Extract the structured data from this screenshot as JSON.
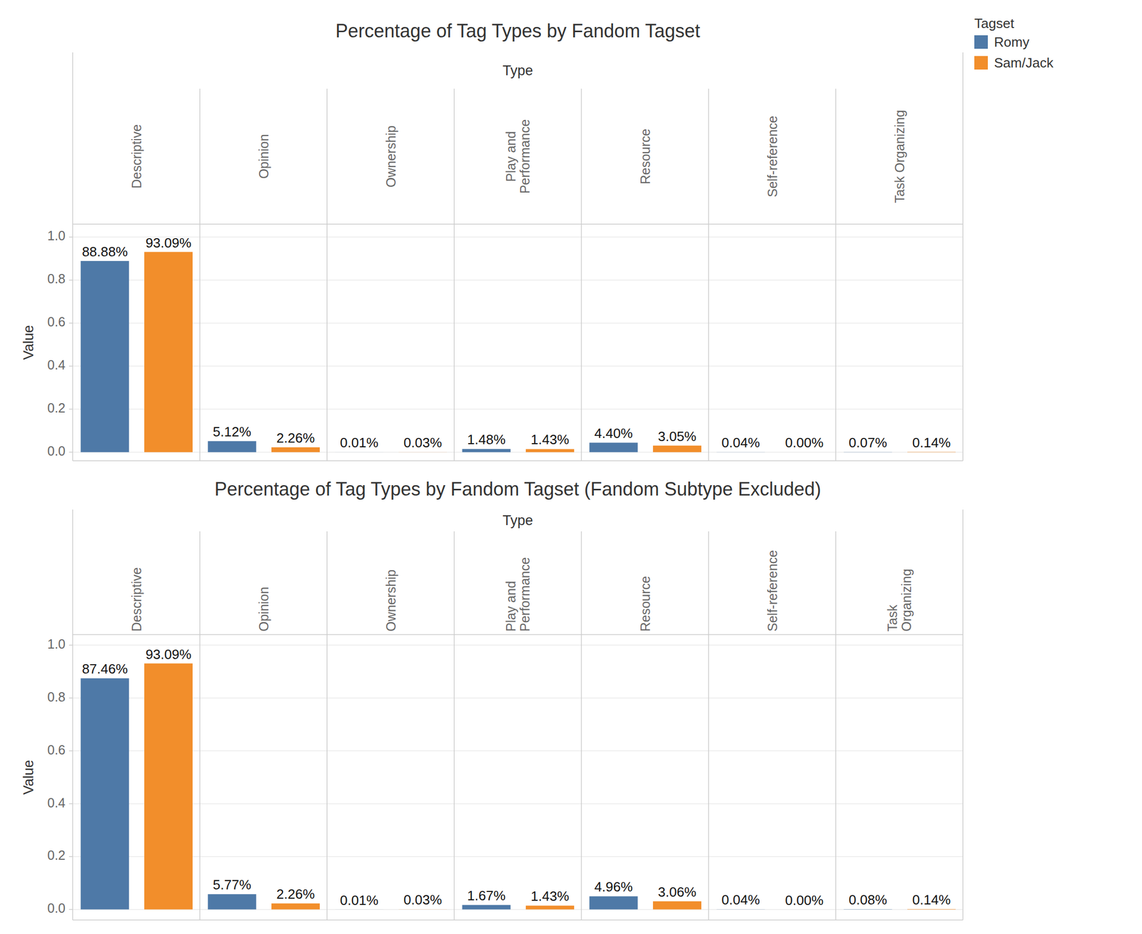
{
  "chart_data": [
    {
      "type": "bar",
      "title": "Percentage of Tag Types by Fandom Tagset",
      "x_label": "Type",
      "y_label": "Value",
      "categories": [
        "Descriptive",
        "Opinion",
        "Ownership",
        "Play and Performance",
        "Resource",
        "Self-reference",
        "Task Organizing"
      ],
      "series": [
        {
          "name": "Romy",
          "color": "#4e79a7",
          "values": [
            0.8888,
            0.0512,
            0.0001,
            0.0148,
            0.044,
            0.0004,
            0.0007
          ],
          "value_labels": [
            "88.88%",
            "5.12%",
            "0.01%",
            "1.48%",
            "4.40%",
            "0.04%",
            "0.07%"
          ]
        },
        {
          "name": "Sam/Jack",
          "color": "#f28e2b",
          "values": [
            0.9309,
            0.0226,
            0.0003,
            0.0143,
            0.0305,
            0,
            0.0014
          ],
          "value_labels": [
            "93.09%",
            "2.26%",
            "0.03%",
            "1.43%",
            "3.05%",
            "0.00%",
            "0.14%"
          ]
        }
      ],
      "ylim": [
        -0.04,
        1.06
      ],
      "yticks": [
        {
          "value": 0,
          "label": "0.0"
        },
        0.2,
        0.4,
        0.6,
        0.8,
        {
          "value": 1,
          "label": "1.0"
        }
      ],
      "grid": true,
      "data_labels": true,
      "legend": "top-right",
      "legend_title": "Tagset"
    },
    {
      "type": "bar",
      "title": "Percentage of Tag Types by Fandom Tagset (Fandom Subtype Excluded)",
      "x_label": "Type",
      "y_label": "Value",
      "categories": [
        "Descriptive",
        "Opinion",
        "Ownership",
        "Play and Performance",
        "Resource",
        "Self-reference",
        "Task Organizing"
      ],
      "series": [
        {
          "color": "#4e79a7",
          "values": [
            0.8746,
            0.0577,
            0.0001,
            0.0167,
            0.0496,
            0.0004,
            0.0008
          ],
          "value_labels": [
            "87.46%",
            "5.77%",
            "0.01%",
            "1.67%",
            "4.96%",
            "0.04%",
            "0.08%"
          ]
        },
        {
          "color": "#f28e2b",
          "values": [
            0.9309,
            0.0226,
            0.0003,
            0.0143,
            0.0306,
            0,
            0.0014
          ],
          "value_labels": [
            "93.09%",
            "2.26%",
            "0.03%",
            "1.43%",
            "3.06%",
            "0.00%",
            "0.14%"
          ]
        }
      ],
      "ylim": [
        -0.04,
        1.04
      ],
      "yticks": [
        {
          "value": 0,
          "label": "0.0"
        },
        0.2,
        0.4,
        0.6,
        0.8,
        {
          "value": 1,
          "label": "1.0"
        }
      ],
      "grid": true,
      "data_labels": true
    }
  ]
}
